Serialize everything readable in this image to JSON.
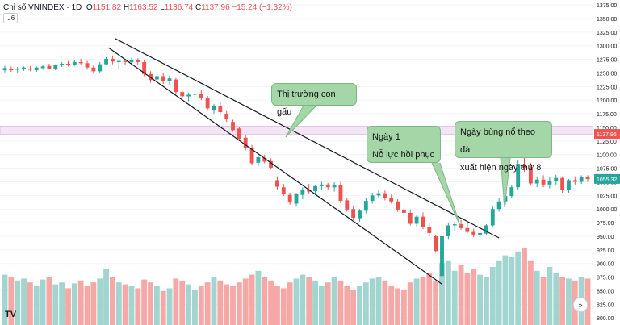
{
  "header": {
    "symbol": "Chỉ số VNINDEX",
    "separator": "·",
    "interval": "1D",
    "o_label": "O",
    "o": "1151.82",
    "h_label": "H",
    "h": "1163.52",
    "l_label": "L",
    "l": "1136.74",
    "c_label": "C",
    "c": "1137.96",
    "change": "−15.24 (−1.32%)"
  },
  "indicator_toggle": {
    "chevron": "⌄",
    "count": "6"
  },
  "annotations": {
    "bear": "Thị trường con gấu",
    "day1_line1": "Ngày 1",
    "day1_line2": "Nỗ lực hồi phục",
    "follow_line1": "Ngày bùng nổ theo đà",
    "follow_line2": "xuất hiện ngày thứ 8"
  },
  "logo_text": "TV",
  "scroll_glyph": "»",
  "colors": {
    "up": "#26a69a",
    "down": "#ef5350",
    "vol_up": "#a2d5cf",
    "vol_down": "#f5a8a6",
    "band": "#e1bee7",
    "price_tag": "#ef5350",
    "last_tag": "#26a69a"
  },
  "chart_data": {
    "type": "candlestick",
    "y_ticks": [
      800,
      825,
      850,
      875,
      900,
      925,
      950,
      975,
      1000,
      1025,
      1050,
      1075,
      1100,
      1125,
      1150,
      1175,
      1200,
      1225,
      1250,
      1275,
      1300,
      1325,
      1350,
      1375
    ],
    "ylim": [
      787,
      1384
    ],
    "price_tag": "1137.96",
    "last_price_tag": "1055.32",
    "resistance_band": [
      1137,
      1152
    ],
    "candles": [
      {
        "o": 1255,
        "h": 1263,
        "l": 1251,
        "c": 1259
      },
      {
        "o": 1257,
        "h": 1262,
        "l": 1252,
        "c": 1255
      },
      {
        "o": 1256,
        "h": 1261,
        "l": 1251,
        "c": 1258
      },
      {
        "o": 1257,
        "h": 1262,
        "l": 1254,
        "c": 1260
      },
      {
        "o": 1258,
        "h": 1263,
        "l": 1253,
        "c": 1256
      },
      {
        "o": 1255,
        "h": 1262,
        "l": 1252,
        "c": 1260
      },
      {
        "o": 1259,
        "h": 1265,
        "l": 1256,
        "c": 1262
      },
      {
        "o": 1263,
        "h": 1267,
        "l": 1257,
        "c": 1258
      },
      {
        "o": 1258,
        "h": 1266,
        "l": 1255,
        "c": 1264
      },
      {
        "o": 1264,
        "h": 1270,
        "l": 1261,
        "c": 1267
      },
      {
        "o": 1267,
        "h": 1272,
        "l": 1262,
        "c": 1265
      },
      {
        "o": 1265,
        "h": 1274,
        "l": 1263,
        "c": 1270
      },
      {
        "o": 1270,
        "h": 1276,
        "l": 1265,
        "c": 1268
      },
      {
        "o": 1268,
        "h": 1272,
        "l": 1256,
        "c": 1260
      },
      {
        "o": 1260,
        "h": 1264,
        "l": 1250,
        "c": 1253
      },
      {
        "o": 1253,
        "h": 1270,
        "l": 1250,
        "c": 1266
      },
      {
        "o": 1266,
        "h": 1279,
        "l": 1264,
        "c": 1276
      },
      {
        "o": 1276,
        "h": 1282,
        "l": 1266,
        "c": 1271
      },
      {
        "o": 1270,
        "h": 1276,
        "l": 1256,
        "c": 1272
      },
      {
        "o": 1272,
        "h": 1276,
        "l": 1265,
        "c": 1270
      },
      {
        "o": 1270,
        "h": 1278,
        "l": 1266,
        "c": 1274
      },
      {
        "o": 1274,
        "h": 1277,
        "l": 1265,
        "c": 1270
      },
      {
        "o": 1270,
        "h": 1274,
        "l": 1244,
        "c": 1248
      },
      {
        "o": 1248,
        "h": 1253,
        "l": 1232,
        "c": 1237
      },
      {
        "o": 1238,
        "h": 1248,
        "l": 1232,
        "c": 1244
      },
      {
        "o": 1244,
        "h": 1250,
        "l": 1230,
        "c": 1235
      },
      {
        "o": 1235,
        "h": 1245,
        "l": 1228,
        "c": 1240
      },
      {
        "o": 1238,
        "h": 1241,
        "l": 1210,
        "c": 1215
      },
      {
        "o": 1215,
        "h": 1218,
        "l": 1203,
        "c": 1207
      },
      {
        "o": 1207,
        "h": 1214,
        "l": 1198,
        "c": 1210
      },
      {
        "o": 1210,
        "h": 1222,
        "l": 1207,
        "c": 1212
      },
      {
        "o": 1212,
        "h": 1218,
        "l": 1200,
        "c": 1204
      },
      {
        "o": 1204,
        "h": 1208,
        "l": 1182,
        "c": 1185
      },
      {
        "o": 1182,
        "h": 1193,
        "l": 1175,
        "c": 1190
      },
      {
        "o": 1190,
        "h": 1196,
        "l": 1174,
        "c": 1178
      },
      {
        "o": 1175,
        "h": 1180,
        "l": 1160,
        "c": 1165
      },
      {
        "o": 1160,
        "h": 1164,
        "l": 1142,
        "c": 1145
      },
      {
        "o": 1148,
        "h": 1150,
        "l": 1126,
        "c": 1129
      },
      {
        "o": 1131,
        "h": 1136,
        "l": 1108,
        "c": 1112
      },
      {
        "o": 1112,
        "h": 1118,
        "l": 1080,
        "c": 1084
      },
      {
        "o": 1085,
        "h": 1098,
        "l": 1079,
        "c": 1095
      },
      {
        "o": 1094,
        "h": 1100,
        "l": 1084,
        "c": 1087
      },
      {
        "o": 1088,
        "h": 1093,
        "l": 1073,
        "c": 1076
      },
      {
        "o": 1053,
        "h": 1060,
        "l": 1036,
        "c": 1041
      },
      {
        "o": 1040,
        "h": 1046,
        "l": 1024,
        "c": 1027
      },
      {
        "o": 1026,
        "h": 1030,
        "l": 1008,
        "c": 1012
      },
      {
        "o": 1010,
        "h": 1030,
        "l": 1006,
        "c": 1027
      },
      {
        "o": 1026,
        "h": 1040,
        "l": 1018,
        "c": 1036
      },
      {
        "o": 1036,
        "h": 1046,
        "l": 1028,
        "c": 1032
      },
      {
        "o": 1033,
        "h": 1044,
        "l": 1025,
        "c": 1042
      },
      {
        "o": 1042,
        "h": 1050,
        "l": 1036,
        "c": 1045
      },
      {
        "o": 1045,
        "h": 1048,
        "l": 1035,
        "c": 1040
      },
      {
        "o": 1040,
        "h": 1049,
        "l": 1032,
        "c": 1044
      },
      {
        "o": 1044,
        "h": 1050,
        "l": 1011,
        "c": 1015
      },
      {
        "o": 1016,
        "h": 1020,
        "l": 995,
        "c": 999
      },
      {
        "o": 1000,
        "h": 1006,
        "l": 980,
        "c": 984
      },
      {
        "o": 983,
        "h": 1000,
        "l": 977,
        "c": 997
      },
      {
        "o": 997,
        "h": 1020,
        "l": 992,
        "c": 1015
      },
      {
        "o": 1015,
        "h": 1030,
        "l": 1010,
        "c": 1025
      },
      {
        "o": 1025,
        "h": 1036,
        "l": 1020,
        "c": 1029
      },
      {
        "o": 1029,
        "h": 1034,
        "l": 1016,
        "c": 1020
      },
      {
        "o": 1020,
        "h": 1028,
        "l": 1010,
        "c": 1014
      },
      {
        "o": 1014,
        "h": 1018,
        "l": 995,
        "c": 999
      },
      {
        "o": 999,
        "h": 1008,
        "l": 988,
        "c": 993
      },
      {
        "o": 993,
        "h": 998,
        "l": 970,
        "c": 973
      },
      {
        "o": 973,
        "h": 990,
        "l": 968,
        "c": 986
      },
      {
        "o": 986,
        "h": 994,
        "l": 963,
        "c": 967
      },
      {
        "o": 967,
        "h": 974,
        "l": 950,
        "c": 956
      },
      {
        "o": 950,
        "h": 952,
        "l": 920,
        "c": 923
      },
      {
        "o": 877,
        "h": 960,
        "l": 875,
        "c": 950
      },
      {
        "o": 950,
        "h": 975,
        "l": 945,
        "c": 970
      },
      {
        "o": 970,
        "h": 978,
        "l": 960,
        "c": 972
      },
      {
        "o": 972,
        "h": 980,
        "l": 962,
        "c": 965
      },
      {
        "o": 965,
        "h": 975,
        "l": 955,
        "c": 958
      },
      {
        "o": 958,
        "h": 964,
        "l": 948,
        "c": 953
      },
      {
        "o": 953,
        "h": 960,
        "l": 946,
        "c": 956
      },
      {
        "o": 955,
        "h": 972,
        "l": 952,
        "c": 970
      },
      {
        "o": 970,
        "h": 1005,
        "l": 968,
        "c": 1000
      },
      {
        "o": 1000,
        "h": 1020,
        "l": 995,
        "c": 1014
      },
      {
        "o": 1014,
        "h": 1030,
        "l": 1008,
        "c": 1024
      },
      {
        "o": 1024,
        "h": 1045,
        "l": 1020,
        "c": 1040
      },
      {
        "o": 1040,
        "h": 1090,
        "l": 1035,
        "c": 1083
      },
      {
        "o": 1082,
        "h": 1098,
        "l": 1068,
        "c": 1076
      },
      {
        "o": 1076,
        "h": 1085,
        "l": 1043,
        "c": 1047
      },
      {
        "o": 1047,
        "h": 1060,
        "l": 1040,
        "c": 1054
      },
      {
        "o": 1054,
        "h": 1062,
        "l": 1040,
        "c": 1045
      },
      {
        "o": 1045,
        "h": 1058,
        "l": 1038,
        "c": 1052
      },
      {
        "o": 1052,
        "h": 1063,
        "l": 1045,
        "c": 1057
      },
      {
        "o": 1057,
        "h": 1060,
        "l": 1030,
        "c": 1035
      },
      {
        "o": 1035,
        "h": 1055,
        "l": 1030,
        "c": 1053
      },
      {
        "o": 1053,
        "h": 1060,
        "l": 1045,
        "c": 1050
      },
      {
        "o": 1050,
        "h": 1062,
        "l": 1046,
        "c": 1059
      },
      {
        "o": 1059,
        "h": 1062,
        "l": 1050,
        "c": 1055
      }
    ],
    "volume_scale": 100,
    "volumes": [
      52,
      50,
      46,
      48,
      44,
      40,
      47,
      50,
      42,
      44,
      38,
      43,
      46,
      40,
      44,
      48,
      58,
      50,
      44,
      42,
      40,
      38,
      47,
      44,
      40,
      35,
      38,
      48,
      46,
      42,
      36,
      40,
      44,
      50,
      46,
      42,
      40,
      44,
      48,
      52,
      56,
      50,
      46,
      40,
      38,
      44,
      48,
      52,
      50,
      46,
      40,
      44,
      50,
      46,
      40,
      36,
      40,
      44,
      48,
      50,
      46,
      40,
      38,
      36,
      44,
      48,
      50,
      54,
      46,
      64,
      66,
      56,
      62,
      54,
      58,
      52,
      50,
      60,
      66,
      72,
      70,
      76,
      80,
      66,
      56,
      50,
      60,
      54,
      50,
      48,
      46,
      50,
      48
    ]
  }
}
